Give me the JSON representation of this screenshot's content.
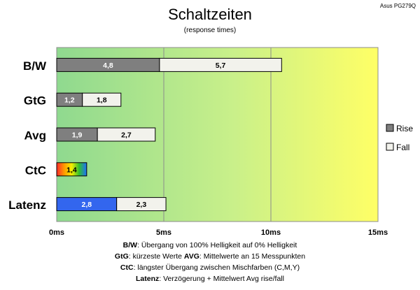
{
  "chart_data": {
    "type": "bar",
    "orientation": "horizontal",
    "stacked": true,
    "title": "Schaltzeiten",
    "subtitle": "(response times)",
    "corner_label": "Asus PG279Q",
    "categories": [
      "B/W",
      "GtG",
      "Avg",
      "CtC",
      "Latenz"
    ],
    "series": [
      {
        "name": "Rise",
        "values": [
          4.8,
          1.2,
          1.9,
          1.4,
          2.8
        ],
        "labels": [
          "4,8",
          "1,2",
          "1,9",
          "1,4",
          "2,8"
        ],
        "color": "#7f7f7f"
      },
      {
        "name": "Fall",
        "values": [
          5.7,
          1.8,
          2.7,
          null,
          2.3
        ],
        "labels": [
          "5,7",
          "1,8",
          "2,7",
          "",
          "2,3"
        ],
        "color": "#f2f2ec"
      }
    ],
    "special_colors": {
      "ctc_gradient": [
        "#ff2a2a",
        "#ff9a00",
        "#f4ef00",
        "#2fbf2f",
        "#1e6fff"
      ],
      "latenz_rise": "#3366ee"
    },
    "xlim": [
      0,
      15
    ],
    "xticks": [
      0,
      5,
      10,
      15
    ],
    "xtick_labels": [
      "0ms",
      "5ms",
      "10ms",
      "15ms"
    ],
    "background_gradient": [
      "#8fd98f",
      "#c9f08a",
      "#ffff66"
    ],
    "grid": true,
    "legend_position": "right",
    "footnotes": [
      {
        "bold": "B/W",
        "text": ":  Übergang von 100% Helligkeit auf 0% Helligkeit"
      },
      {
        "bold": "GtG",
        "text": ": kürzeste  Werte",
        "bold2": "AVG",
        "text2": ": Mittelwerte  an 15 Messpunkten"
      },
      {
        "bold": "CtC",
        "text": ": längster Übergang  zwischen Mischfarben  (C,M,Y)"
      },
      {
        "bold": "Latenz",
        "text": ": Verzögerung  + Mittelwert  Avg rise/fall"
      }
    ]
  }
}
